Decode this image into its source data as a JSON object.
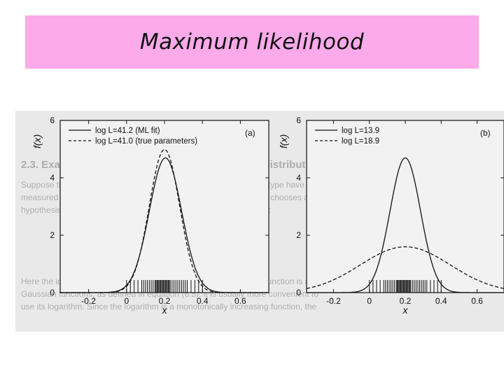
{
  "slide": {
    "title": "Maximum likelihood"
  },
  "background_text": {
    "heading": "2.3. Example of an ML estimator: an exponential distribution",
    "lines": [
      "Suppose the proper decay times for unstable particles of a certain type have been",
      "measured for n decays, yielding values t1, ..., tn, and suppose one chooses as a",
      "hypothesis for the distribution of t an exponential p.d.f. with mean τ:",
      "Here the idea is to estimate the value of τ such that the likelihood function is a maximum. For the",
      "Gaussian functions, as defined in equation (6.5), it is usually more convenient to",
      "use its logarithm. Since the logarithm is a monotonically increasing function, the"
    ]
  },
  "chart_data": [
    {
      "type": "line",
      "panel_label": "(a)",
      "ylabel": "f(x)",
      "xlabel": "x",
      "xlim": [
        -0.35,
        0.75
      ],
      "ylim": [
        0,
        6
      ],
      "xticks": [
        "-0.2",
        "0",
        "0.2",
        "0.4",
        "0.6"
      ],
      "yticks": [
        "0",
        "2",
        "4",
        "6"
      ],
      "legend_position": "top-left",
      "series": [
        {
          "name": "log L=41.2 (ML fit)",
          "style": "solid",
          "mu": 0.205,
          "sigma": 0.085
        },
        {
          "name": "log L=41.0 (true parameters)",
          "style": "dashed",
          "mu": 0.2,
          "sigma": 0.08
        }
      ],
      "rug_samples": [
        0.0,
        0.02,
        0.04,
        0.06,
        0.08,
        0.09,
        0.1,
        0.11,
        0.12,
        0.13,
        0.14,
        0.15,
        0.155,
        0.16,
        0.165,
        0.17,
        0.175,
        0.18,
        0.185,
        0.19,
        0.195,
        0.2,
        0.205,
        0.21,
        0.215,
        0.22,
        0.225,
        0.23,
        0.24,
        0.25,
        0.26,
        0.27,
        0.28,
        0.29,
        0.3,
        0.31,
        0.32,
        0.34,
        0.36,
        0.38,
        0.4
      ]
    },
    {
      "type": "line",
      "panel_label": "(b)",
      "ylabel": "f(x)",
      "xlabel": "x",
      "xlim": [
        -0.35,
        0.75
      ],
      "ylim": [
        0,
        6
      ],
      "xticks": [
        "-0.2",
        "0",
        "0.2",
        "0.4",
        "0.6"
      ],
      "yticks": [
        "0",
        "2",
        "4",
        "6"
      ],
      "legend_position": "top-left",
      "series": [
        {
          "name": "log L=13.9",
          "style": "solid",
          "mu": 0.2,
          "sigma": 0.085
        },
        {
          "name": "log L=18.9",
          "style": "dashed",
          "mu": 0.2,
          "sigma": 0.25
        }
      ],
      "rug_samples": [
        0.0,
        0.02,
        0.04,
        0.06,
        0.08,
        0.09,
        0.1,
        0.11,
        0.12,
        0.13,
        0.14,
        0.15,
        0.155,
        0.16,
        0.165,
        0.17,
        0.175,
        0.18,
        0.185,
        0.19,
        0.195,
        0.2,
        0.205,
        0.21,
        0.215,
        0.22,
        0.225,
        0.23,
        0.24,
        0.25,
        0.26,
        0.27,
        0.28,
        0.29,
        0.3,
        0.31,
        0.32,
        0.34,
        0.36,
        0.38,
        0.4
      ]
    }
  ]
}
